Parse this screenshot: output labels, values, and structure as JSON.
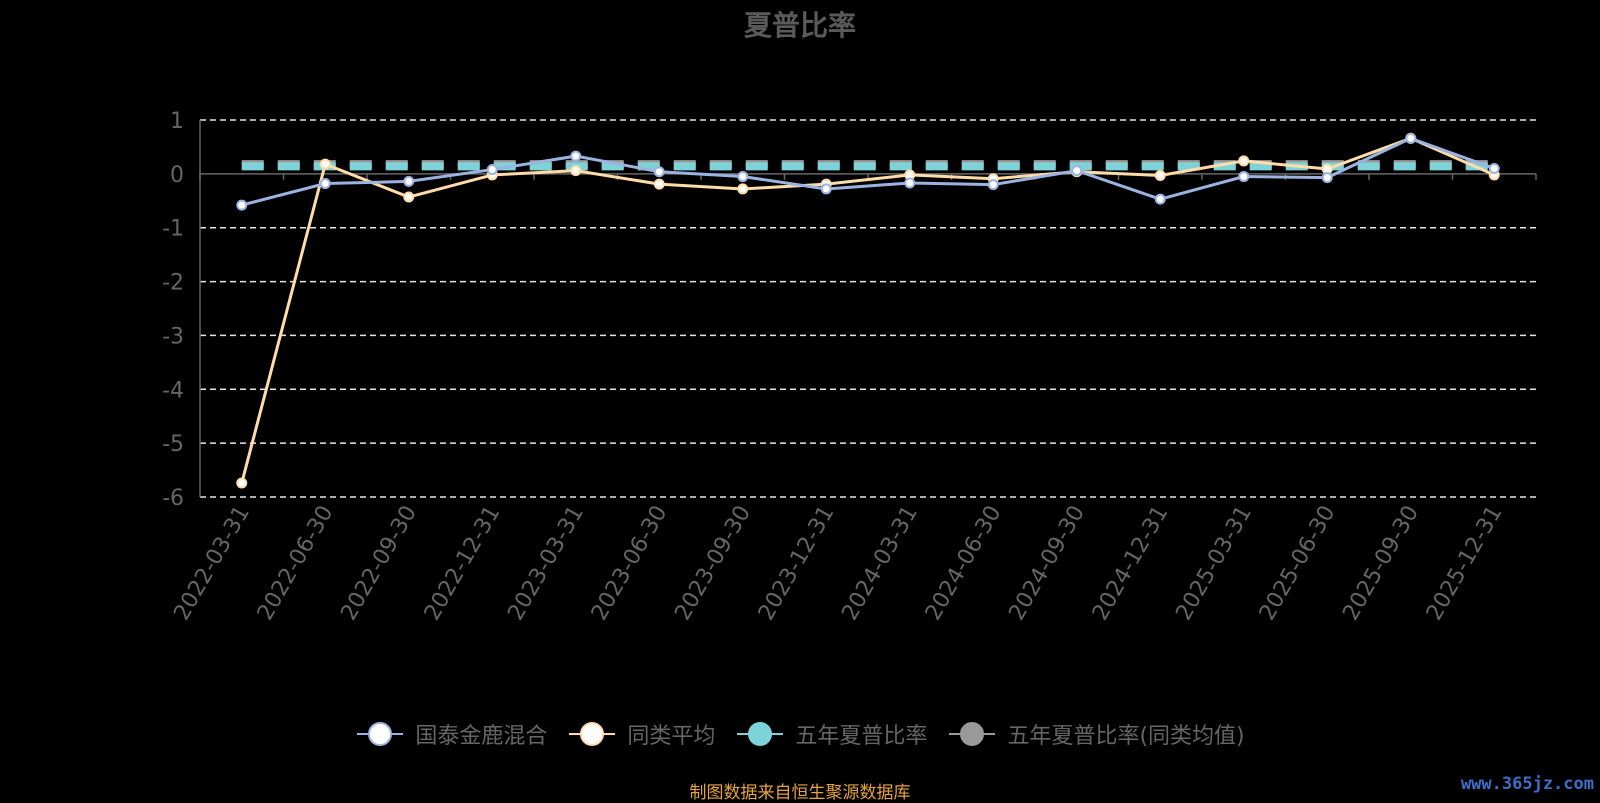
{
  "chart_data": {
    "type": "line",
    "title": "夏普比率",
    "categories": [
      "2022-03-31",
      "2022-06-30",
      "2022-09-30",
      "2022-12-31",
      "2023-03-31",
      "2023-06-30",
      "2023-09-30",
      "2023-12-31",
      "2024-03-31",
      "2024-06-30",
      "2024-09-30",
      "2024-12-31",
      "2025-03-31",
      "2025-06-30",
      "2025-09-30",
      "2025-12-31"
    ],
    "ylim": [
      -6,
      1
    ],
    "yticks": [
      1,
      0,
      -1,
      -2,
      -3,
      -4,
      -5,
      -6
    ],
    "grid": true,
    "legend_position": "bottom",
    "series": [
      {
        "name": "国泰金鹿混合",
        "color": "#9bb3e0",
        "values": [
          -0.58,
          -0.18,
          -0.14,
          0.08,
          0.33,
          0.04,
          -0.05,
          -0.28,
          -0.17,
          -0.2,
          0.06,
          -0.47,
          -0.05,
          -0.07,
          0.66,
          0.1
        ]
      },
      {
        "name": "同类平均",
        "color": "#ffdca8",
        "values": [
          -5.74,
          0.18,
          -0.43,
          -0.02,
          0.06,
          -0.19,
          -0.28,
          -0.19,
          -0.02,
          -0.09,
          0.04,
          -0.03,
          0.24,
          0.09,
          0.66,
          -0.02
        ]
      },
      {
        "name": "五年夏普比率",
        "color": "#7ed3d8",
        "values": [
          0.14,
          0.14,
          0.14,
          0.14,
          0.14,
          0.14,
          0.14,
          0.14,
          0.14,
          0.14,
          0.14,
          0.14,
          0.14,
          0.14,
          0.14,
          0.14
        ]
      },
      {
        "name": "五年夏普比率(同类均值)",
        "color": "#9a9a9a",
        "values": [
          0.18,
          0.18,
          0.18,
          0.18,
          0.18,
          0.18,
          0.18,
          0.18,
          0.18,
          0.18,
          0.18,
          0.18,
          0.18,
          0.18,
          0.18,
          0.18
        ]
      }
    ]
  },
  "footer": {
    "source": "制图数据来自恒生聚源数据库",
    "watermark": "www.365jz.com"
  }
}
